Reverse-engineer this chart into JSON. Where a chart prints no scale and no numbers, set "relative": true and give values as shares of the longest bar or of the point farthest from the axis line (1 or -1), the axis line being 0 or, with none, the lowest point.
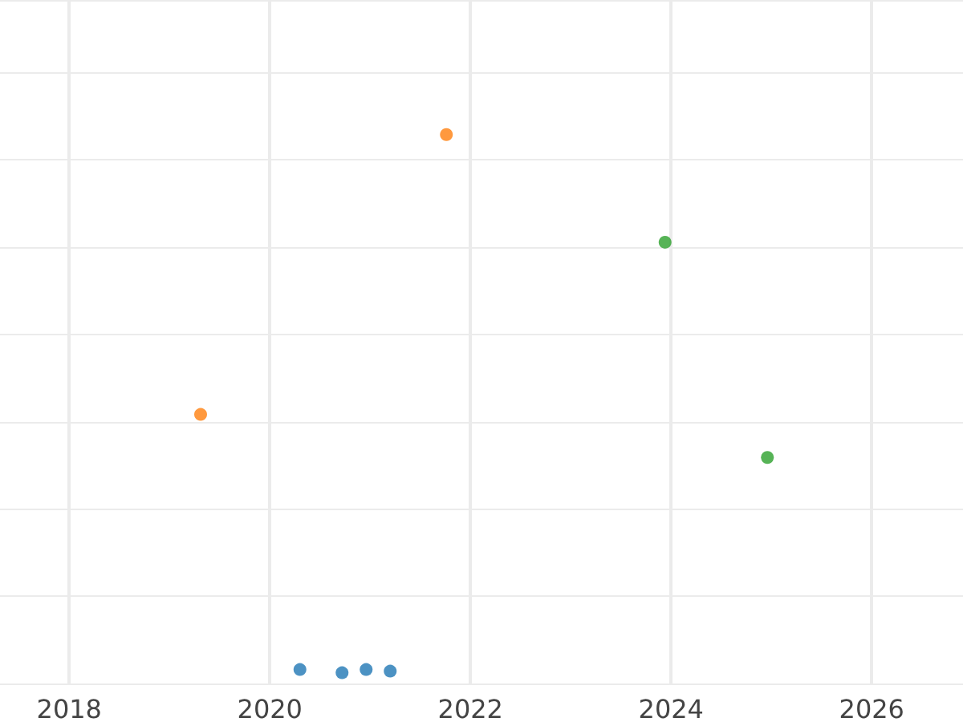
{
  "chart_data": {
    "type": "scatter",
    "relative": true,
    "grid": true,
    "marker": "circle",
    "xlim": [
      2017.31,
      2026.91
    ],
    "xticks": [
      2018,
      2020,
      2022,
      2024,
      2026
    ],
    "series": [
      {
        "color": "#1f77b4",
        "x": [
          2020.3,
          2020.72,
          2020.96,
          2021.2
        ],
        "values": [
          0.006,
          0,
          0.006,
          0.003
        ]
      },
      {
        "color": "#ff7f0e",
        "x": [
          2021.76,
          2019.31
        ],
        "values": [
          1,
          0.48
        ]
      },
      {
        "color": "#2ca02c",
        "x": [
          2023.94,
          2024.96
        ],
        "values": [
          0.8,
          0.4
        ]
      }
    ]
  }
}
